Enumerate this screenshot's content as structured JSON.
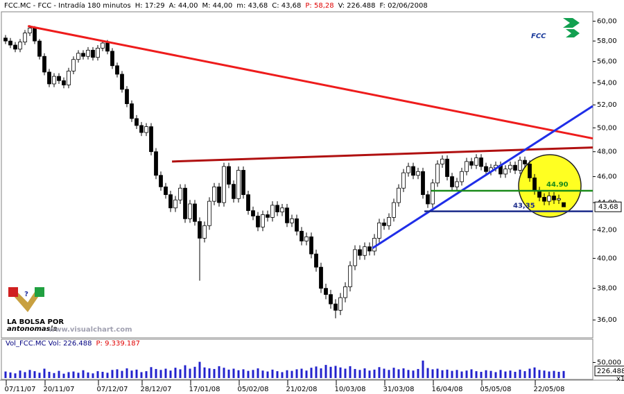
{
  "chart_data": {
    "type": "candlestick",
    "header": [
      {
        "text": "FCC.MC - FCC - Intradía 180 minutos",
        "color": "#000000"
      },
      {
        "text": "H: 17:29",
        "color": "#000000"
      },
      {
        "text": "A: 44,00",
        "color": "#000000"
      },
      {
        "text": "M: 44,00",
        "color": "#000000"
      },
      {
        "text": "m: 43,68",
        "color": "#000000"
      },
      {
        "text": "C: 43,68",
        "color": "#000000"
      },
      {
        "text": "P: 58,28",
        "color": "#e00000"
      },
      {
        "text": "V: 226.488",
        "color": "#000000"
      },
      {
        "text": "F: 02/06/2008",
        "color": "#000000"
      }
    ],
    "logo": "FCC",
    "watermark": "www.visualchart.com",
    "badge_lines": [
      "LA BOLSA POR",
      "antonomasia"
    ],
    "log_scale": true,
    "ylim": [
      35,
      60.9
    ],
    "yticks": [
      {
        "value": 36,
        "label": "36,00"
      },
      {
        "value": 38,
        "label": "38,00"
      },
      {
        "value": 40,
        "label": "40,00"
      },
      {
        "value": 42,
        "label": "42,00"
      },
      {
        "value": 44,
        "label": "44,00"
      },
      {
        "value": 46,
        "label": "46,00"
      },
      {
        "value": 48,
        "label": "48,00"
      },
      {
        "value": 50,
        "label": "50,00"
      },
      {
        "value": 52,
        "label": "52,00"
      },
      {
        "value": 54,
        "label": "54,00"
      },
      {
        "value": 56,
        "label": "56,00"
      },
      {
        "value": 58,
        "label": "58,00"
      },
      {
        "value": 60,
        "label": "60,00"
      }
    ],
    "last_price": {
      "value": 43.68,
      "label": "43,68"
    },
    "up_color": "#ffffff",
    "down_color": "#000000",
    "wick_color": "#000000",
    "categories": [
      null,
      null,
      null,
      "07/11/07",
      null,
      null,
      null,
      null,
      null,
      null,
      null,
      "20/11/07",
      null,
      null,
      null,
      null,
      null,
      null,
      null,
      null,
      null,
      null,
      "07/12/07",
      null,
      null,
      null,
      null,
      null,
      null,
      null,
      null,
      "28/12/07",
      null,
      null,
      null,
      null,
      null,
      null,
      null,
      null,
      null,
      "17/01/08",
      null,
      null,
      null,
      null,
      null,
      null,
      null,
      null,
      null,
      "05/02/08",
      null,
      null,
      null,
      null,
      null,
      null,
      null,
      null,
      null,
      "21/02/08",
      null,
      null,
      null,
      null,
      null,
      null,
      null,
      null,
      null,
      "10/03/08",
      null,
      null,
      null,
      null,
      null,
      null,
      null,
      null,
      null,
      "31/03/08",
      null,
      null,
      null,
      null,
      null,
      null,
      null,
      null,
      null,
      "16/04/08",
      null,
      null,
      null,
      null,
      null,
      null,
      null,
      null,
      null,
      "05/05/08",
      null,
      null,
      null,
      null,
      null,
      null,
      null,
      null,
      null,
      null,
      "22/05/08",
      null,
      null,
      null
    ],
    "open": [
      58.3,
      58.0,
      57.6,
      57.2,
      57.9,
      58.8,
      59.3,
      58.0,
      56.5,
      55.0,
      53.9,
      54.6,
      54.2,
      53.8,
      55.1,
      56.2,
      56.8,
      56.5,
      57.1,
      56.4,
      57.3,
      57.8,
      57.0,
      55.6,
      54.8,
      53.4,
      52.1,
      50.8,
      50.2,
      49.6,
      50.1,
      48.0,
      46.1,
      45.2,
      44.6,
      43.6,
      44.2,
      45.1,
      42.8,
      43.9,
      42.6,
      41.4,
      42.3,
      44.1,
      45.2,
      44.0,
      46.8,
      45.4,
      44.3,
      46.5,
      44.6,
      43.4,
      43.0,
      42.2,
      43.1,
      42.9,
      43.8,
      43.3,
      43.6,
      42.5,
      42.8,
      41.9,
      41.2,
      41.5,
      40.3,
      39.4,
      38.0,
      37.6,
      37.0,
      36.6,
      37.4,
      38.1,
      39.5,
      40.6,
      40.2,
      40.8,
      40.5,
      41.4,
      42.5,
      42.3,
      42.9,
      44.0,
      45.1,
      46.3,
      46.8,
      46.1,
      46.4,
      44.6,
      43.9,
      45.5,
      47.0,
      47.4,
      46.0,
      45.2,
      45.6,
      46.4,
      47.2,
      46.9,
      47.5,
      46.8,
      46.4,
      46.7,
      46.9,
      46.2,
      46.6,
      46.9,
      46.5,
      47.3,
      47.0,
      45.9,
      44.9,
      44.4,
      44.1,
      44.5,
      44.2,
      44.0
    ],
    "high": [
      58.6,
      58.3,
      57.9,
      58.2,
      59.1,
      59.6,
      59.5,
      58.2,
      56.8,
      55.3,
      54.9,
      54.9,
      54.5,
      55.4,
      56.5,
      57.1,
      57.1,
      57.4,
      57.4,
      57.6,
      58.1,
      58.1,
      57.3,
      55.9,
      55.1,
      53.7,
      52.4,
      51.1,
      50.5,
      50.4,
      50.4,
      48.3,
      46.4,
      45.5,
      44.9,
      44.5,
      45.4,
      45.4,
      44.2,
      44.2,
      42.9,
      42.6,
      44.4,
      45.5,
      45.5,
      47.1,
      47.1,
      45.7,
      46.8,
      46.8,
      44.9,
      43.7,
      43.3,
      43.4,
      43.4,
      44.1,
      44.1,
      43.9,
      43.9,
      43.1,
      43.1,
      42.2,
      41.8,
      41.8,
      40.6,
      39.7,
      38.3,
      37.9,
      37.3,
      37.7,
      38.4,
      39.8,
      40.9,
      40.9,
      41.1,
      41.1,
      41.7,
      42.8,
      42.8,
      43.2,
      44.3,
      45.4,
      46.6,
      47.1,
      47.1,
      46.7,
      46.7,
      44.9,
      45.8,
      47.3,
      47.7,
      47.7,
      46.3,
      45.9,
      46.7,
      47.5,
      47.5,
      47.8,
      47.8,
      47.1,
      47.0,
      47.2,
      47.2,
      46.9,
      47.2,
      47.2,
      47.6,
      47.6,
      47.3,
      46.2,
      45.2,
      44.7,
      44.8,
      44.8,
      44.6,
      44.0
    ],
    "low": [
      57.7,
      57.3,
      56.9,
      56.9,
      57.6,
      58.5,
      57.7,
      56.2,
      54.7,
      53.6,
      53.6,
      53.9,
      53.5,
      53.5,
      54.8,
      55.9,
      56.2,
      56.2,
      56.1,
      56.1,
      57.0,
      56.7,
      55.3,
      54.5,
      53.1,
      51.8,
      50.5,
      49.9,
      49.3,
      49.3,
      47.7,
      45.8,
      44.9,
      44.3,
      43.3,
      43.3,
      43.9,
      42.5,
      42.5,
      42.3,
      38.5,
      41.1,
      42.0,
      43.8,
      43.7,
      43.7,
      45.1,
      44.0,
      44.0,
      44.3,
      43.1,
      42.7,
      41.9,
      41.9,
      42.6,
      42.6,
      43.0,
      43.0,
      42.2,
      42.2,
      41.6,
      40.9,
      40.9,
      40.0,
      39.1,
      37.7,
      37.3,
      36.7,
      36.1,
      36.3,
      37.1,
      37.8,
      39.2,
      39.9,
      39.9,
      40.2,
      40.2,
      41.1,
      42.0,
      42.0,
      42.6,
      43.7,
      44.8,
      46.0,
      45.8,
      45.8,
      44.3,
      43.6,
      43.6,
      45.2,
      46.7,
      45.7,
      44.9,
      44.9,
      45.3,
      46.1,
      46.6,
      46.6,
      46.5,
      46.1,
      46.1,
      46.4,
      45.9,
      45.9,
      46.3,
      46.2,
      46.2,
      46.7,
      45.6,
      44.6,
      44.1,
      43.8,
      43.8,
      43.9,
      43.9,
      43.68
    ],
    "close": [
      58.0,
      57.6,
      57.2,
      57.9,
      58.8,
      59.3,
      58.0,
      56.5,
      55.0,
      53.9,
      54.6,
      54.2,
      53.8,
      55.1,
      56.2,
      56.8,
      56.5,
      57.1,
      56.4,
      57.3,
      57.8,
      57.0,
      55.6,
      54.8,
      53.4,
      52.1,
      50.8,
      50.2,
      49.6,
      50.1,
      48.0,
      46.1,
      45.2,
      44.6,
      43.6,
      44.2,
      45.1,
      42.8,
      43.9,
      42.6,
      41.4,
      42.3,
      44.1,
      45.2,
      44.0,
      46.8,
      45.4,
      44.3,
      46.5,
      44.6,
      43.4,
      43.0,
      42.2,
      43.1,
      42.9,
      43.8,
      43.3,
      43.6,
      42.5,
      42.8,
      41.9,
      41.2,
      41.5,
      40.3,
      39.4,
      38.0,
      37.6,
      37.0,
      36.6,
      37.4,
      38.1,
      39.5,
      40.6,
      40.2,
      40.8,
      40.5,
      41.4,
      42.5,
      42.3,
      42.9,
      44.0,
      45.1,
      46.3,
      46.8,
      46.1,
      46.4,
      44.6,
      43.9,
      45.5,
      47.0,
      47.4,
      46.0,
      45.2,
      45.6,
      46.4,
      47.2,
      46.9,
      47.5,
      46.8,
      46.4,
      46.7,
      46.9,
      46.2,
      46.6,
      46.9,
      46.5,
      47.3,
      47.0,
      45.9,
      44.9,
      44.4,
      44.1,
      44.5,
      44.2,
      44.3,
      43.68
    ],
    "trendlines": [
      {
        "color": "#ee1c1c",
        "x": [
          4.6,
          121
        ],
        "y": [
          59.5,
          49.1
        ]
      },
      {
        "color": "#b01010",
        "x": [
          34.3,
          121
        ],
        "y": [
          47.2,
          48.35
        ]
      },
      {
        "color": "#1f2ee8",
        "x": [
          75.6,
          121
        ],
        "y": [
          40.7,
          51.9
        ]
      }
    ],
    "levels": [
      {
        "color": "#1a8a1a",
        "from": 87.7,
        "value": 44.9,
        "label": "44.90"
      },
      {
        "color": "#1a2a8a",
        "from": 86.3,
        "value": 43.35,
        "label": "43,35"
      }
    ],
    "volume": {
      "header": [
        {
          "text": "Vol_FCC.MC  Vol: 226.488",
          "color": "#000080"
        },
        {
          "text": "P: 9.339.187",
          "color": "#e00000"
        }
      ],
      "color": "#2222cc",
      "ylim": [
        0,
        1000000
      ],
      "yticks": [
        {
          "value": 500000,
          "label": "50,000"
        }
      ],
      "multiplier": "x10",
      "last": {
        "value": 226488,
        "label": "226.488"
      },
      "values": [
        210000,
        180000,
        150000,
        240000,
        190000,
        260000,
        220000,
        170000,
        300000,
        200000,
        160000,
        230000,
        140000,
        190000,
        210000,
        170000,
        250000,
        180000,
        150000,
        220000,
        200000,
        170000,
        260000,
        280000,
        230000,
        310000,
        240000,
        270000,
        190000,
        220000,
        350000,
        290000,
        260000,
        300000,
        240000,
        330000,
        280000,
        410000,
        300000,
        360000,
        520000,
        340000,
        310000,
        290000,
        380000,
        330000,
        270000,
        300000,
        250000,
        280000,
        230000,
        260000,
        310000,
        240000,
        210000,
        270000,
        220000,
        190000,
        250000,
        230000,
        280000,
        300000,
        240000,
        330000,
        370000,
        310000,
        420000,
        360000,
        390000,
        340000,
        300000,
        380000,
        290000,
        260000,
        310000,
        240000,
        270000,
        350000,
        300000,
        260000,
        330000,
        280000,
        310000,
        260000,
        240000,
        290000,
        560000,
        320000,
        280000,
        300000,
        250000,
        270000,
        230000,
        260000,
        210000,
        240000,
        280000,
        220000,
        200000,
        250000,
        230000,
        190000,
        260000,
        210000,
        240000,
        200000,
        270000,
        220000,
        300000,
        340000,
        260000,
        240000,
        210000,
        230000,
        200000,
        226488
      ]
    }
  }
}
